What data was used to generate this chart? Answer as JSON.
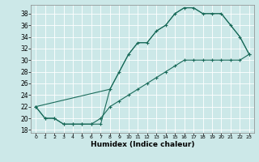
{
  "xlabel": "Humidex (Indice chaleur)",
  "xlim": [
    -0.5,
    23.5
  ],
  "ylim": [
    17.5,
    39.5
  ],
  "xticks": [
    0,
    1,
    2,
    3,
    4,
    5,
    6,
    7,
    8,
    9,
    10,
    11,
    12,
    13,
    14,
    15,
    16,
    17,
    18,
    19,
    20,
    21,
    22,
    23
  ],
  "yticks": [
    18,
    20,
    22,
    24,
    26,
    28,
    30,
    32,
    34,
    36,
    38
  ],
  "line_color": "#1a6b5a",
  "bg_color": "#cce8e8",
  "grid_color": "#b8d8d8",
  "upper_x": [
    0,
    1,
    2,
    3,
    4,
    5,
    6,
    7,
    8,
    9,
    10,
    11,
    12,
    13,
    14,
    15,
    16,
    17,
    18,
    19,
    20,
    21,
    22,
    23
  ],
  "upper_y": [
    22,
    20,
    20,
    19,
    19,
    19,
    19,
    19,
    25,
    28,
    31,
    33,
    33,
    35,
    36,
    38,
    39,
    39,
    38,
    38,
    38,
    36,
    34,
    31
  ],
  "lower_x": [
    0,
    1,
    2,
    3,
    4,
    5,
    6,
    7,
    8,
    9,
    10,
    11,
    12,
    13,
    14,
    15,
    16,
    17,
    18,
    19,
    20,
    21,
    22,
    23
  ],
  "lower_y": [
    22,
    20,
    20,
    19,
    19,
    19,
    19,
    20,
    22,
    23,
    24,
    25,
    26,
    27,
    28,
    29,
    30,
    30,
    30,
    30,
    30,
    30,
    30,
    31
  ],
  "diag_x": [
    0,
    8,
    9,
    10,
    11,
    12,
    13,
    14,
    15,
    16,
    17,
    18,
    19,
    20,
    21,
    22,
    23
  ],
  "diag_y": [
    22,
    25,
    28,
    31,
    33,
    33,
    35,
    36,
    38,
    39,
    39,
    38,
    38,
    38,
    36,
    34,
    31
  ]
}
